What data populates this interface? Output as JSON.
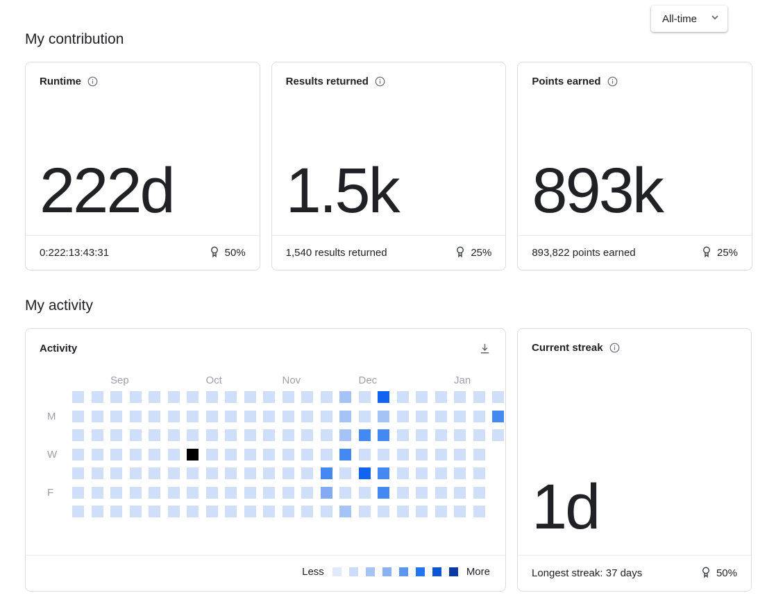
{
  "filter": {
    "selected": "All-time"
  },
  "sections": {
    "contribution": "My contribution",
    "activity": "My activity"
  },
  "cards": {
    "runtime": {
      "title": "Runtime",
      "value": "222d",
      "footer": "0:222:13:43:31",
      "percent": "50%"
    },
    "results": {
      "title": "Results returned",
      "value": "1.5k",
      "footer": "1,540 results returned",
      "percent": "25%"
    },
    "points": {
      "title": "Points earned",
      "value": "893k",
      "footer": "893,822 points earned",
      "percent": "25%"
    }
  },
  "activity_card": {
    "title": "Activity",
    "legend_less": "Less",
    "legend_more": "More"
  },
  "streak_card": {
    "title": "Current streak",
    "value": "1d",
    "footer": "Longest streak: 37 days",
    "percent": "50%"
  },
  "icons": {
    "info": "info-icon",
    "award": "award-badge-icon",
    "download": "download-icon",
    "chevron": "chevron-down-icon"
  },
  "colors": {
    "card_border": "#dadce0",
    "divider": "#e8eaed",
    "muted_text": "#9aa0a6",
    "icon_gray": "#5f6368"
  },
  "chart_data": {
    "type": "heatmap",
    "title": "Activity",
    "weeks": 23,
    "rows": 7,
    "months": [
      {
        "label": "Sep",
        "col": 2
      },
      {
        "label": "Oct",
        "col": 7
      },
      {
        "label": "Nov",
        "col": 11
      },
      {
        "label": "Dec",
        "col": 15
      },
      {
        "label": "Jan",
        "col": 20
      }
    ],
    "day_labels": [
      {
        "label": "M",
        "row": 1
      },
      {
        "label": "W",
        "row": 3
      },
      {
        "label": "F",
        "row": 5
      }
    ],
    "levels": {
      "1": "#cfdef9",
      "2": "#a6c3f6",
      "3": "#82abf1",
      "4": "#4489f2",
      "5": "#1163f2",
      "b": "#000000"
    },
    "grid": [
      [
        1,
        1,
        1,
        1,
        1,
        1,
        1,
        1,
        1,
        1,
        1,
        1,
        1,
        1,
        2,
        1,
        5,
        1,
        1,
        1,
        1,
        1,
        1
      ],
      [
        1,
        1,
        1,
        1,
        1,
        1,
        1,
        1,
        1,
        1,
        1,
        1,
        1,
        1,
        2,
        1,
        2,
        1,
        1,
        1,
        1,
        1,
        4
      ],
      [
        1,
        1,
        1,
        1,
        1,
        1,
        1,
        1,
        1,
        1,
        1,
        1,
        1,
        1,
        2,
        4,
        4,
        1,
        1,
        1,
        1,
        1,
        1
      ],
      [
        1,
        1,
        1,
        1,
        1,
        1,
        "b",
        1,
        1,
        1,
        1,
        1,
        1,
        1,
        4,
        1,
        1,
        1,
        1,
        1,
        1,
        1,
        null
      ],
      [
        1,
        1,
        1,
        1,
        1,
        1,
        1,
        1,
        1,
        1,
        1,
        1,
        1,
        4,
        1,
        5,
        4,
        1,
        1,
        1,
        1,
        1,
        null
      ],
      [
        1,
        1,
        1,
        1,
        1,
        1,
        1,
        1,
        1,
        1,
        1,
        1,
        1,
        3,
        1,
        1,
        4,
        1,
        1,
        1,
        1,
        1,
        null
      ],
      [
        1,
        1,
        1,
        1,
        1,
        1,
        1,
        1,
        1,
        1,
        1,
        1,
        1,
        1,
        2,
        1,
        1,
        1,
        1,
        1,
        1,
        1,
        null
      ]
    ],
    "legend_colors": [
      "#dfe9fc",
      "#ccdcf9",
      "#a6c3f6",
      "#8ab2f2",
      "#5d96ee",
      "#2276f0",
      "#0d55d6",
      "#0a3aa2"
    ],
    "legend_less": "Less",
    "legend_more": "More"
  }
}
